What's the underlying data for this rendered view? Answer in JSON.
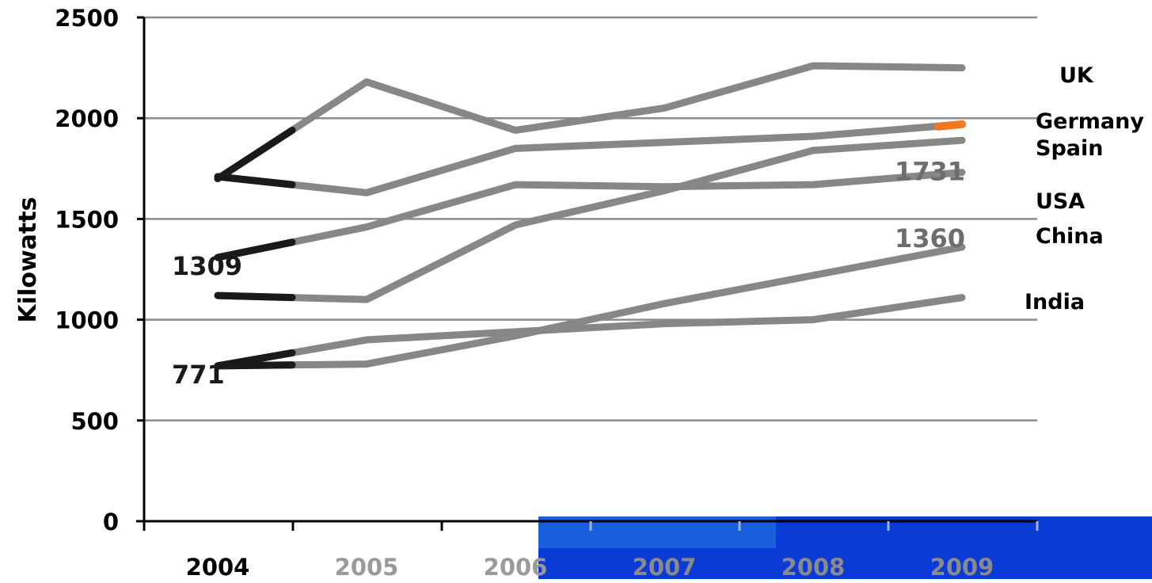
{
  "chart_data": {
    "type": "line",
    "title": "",
    "xlabel": "",
    "ylabel": "Kilowatts",
    "x": [
      "2004",
      "2005",
      "2006",
      "2007",
      "2008",
      "2009"
    ],
    "yticks": [
      "0",
      "500",
      "1000",
      "1500",
      "2000",
      "2500"
    ],
    "ylim": [
      0,
      2500
    ],
    "grid": true,
    "legend": "right",
    "series": [
      {
        "name": "UK",
        "values": [
          1700,
          2180,
          1940,
          2050,
          2260,
          2250
        ]
      },
      {
        "name": "Germany",
        "values": [
          1710,
          1630,
          1850,
          1880,
          1910,
          1970
        ]
      },
      {
        "name": "Spain",
        "values": [
          1309,
          1460,
          1670,
          1660,
          1670,
          1731
        ]
      },
      {
        "name": "USA",
        "values": [
          1120,
          1100,
          1470,
          1640,
          1840,
          1890
        ]
      },
      {
        "name": "China",
        "values": [
          771,
          780,
          920,
          1080,
          1220,
          1360
        ]
      },
      {
        "name": "India",
        "values": [
          771,
          900,
          940,
          980,
          1000,
          1110
        ]
      }
    ],
    "annotations": [
      {
        "text": "1309",
        "x": "2004",
        "y": 1309
      },
      {
        "text": "771",
        "x": "2004",
        "y": 771
      },
      {
        "text": "1731",
        "x": "2009",
        "y": 1731
      },
      {
        "text": "1360",
        "x": "2009",
        "y": 1360
      }
    ],
    "colors": {
      "line": "#878787",
      "grid": "#8c8c8c",
      "axis": "#000000",
      "accent_blue": "#0a3bd6",
      "accent_orange": "#f07820"
    }
  }
}
